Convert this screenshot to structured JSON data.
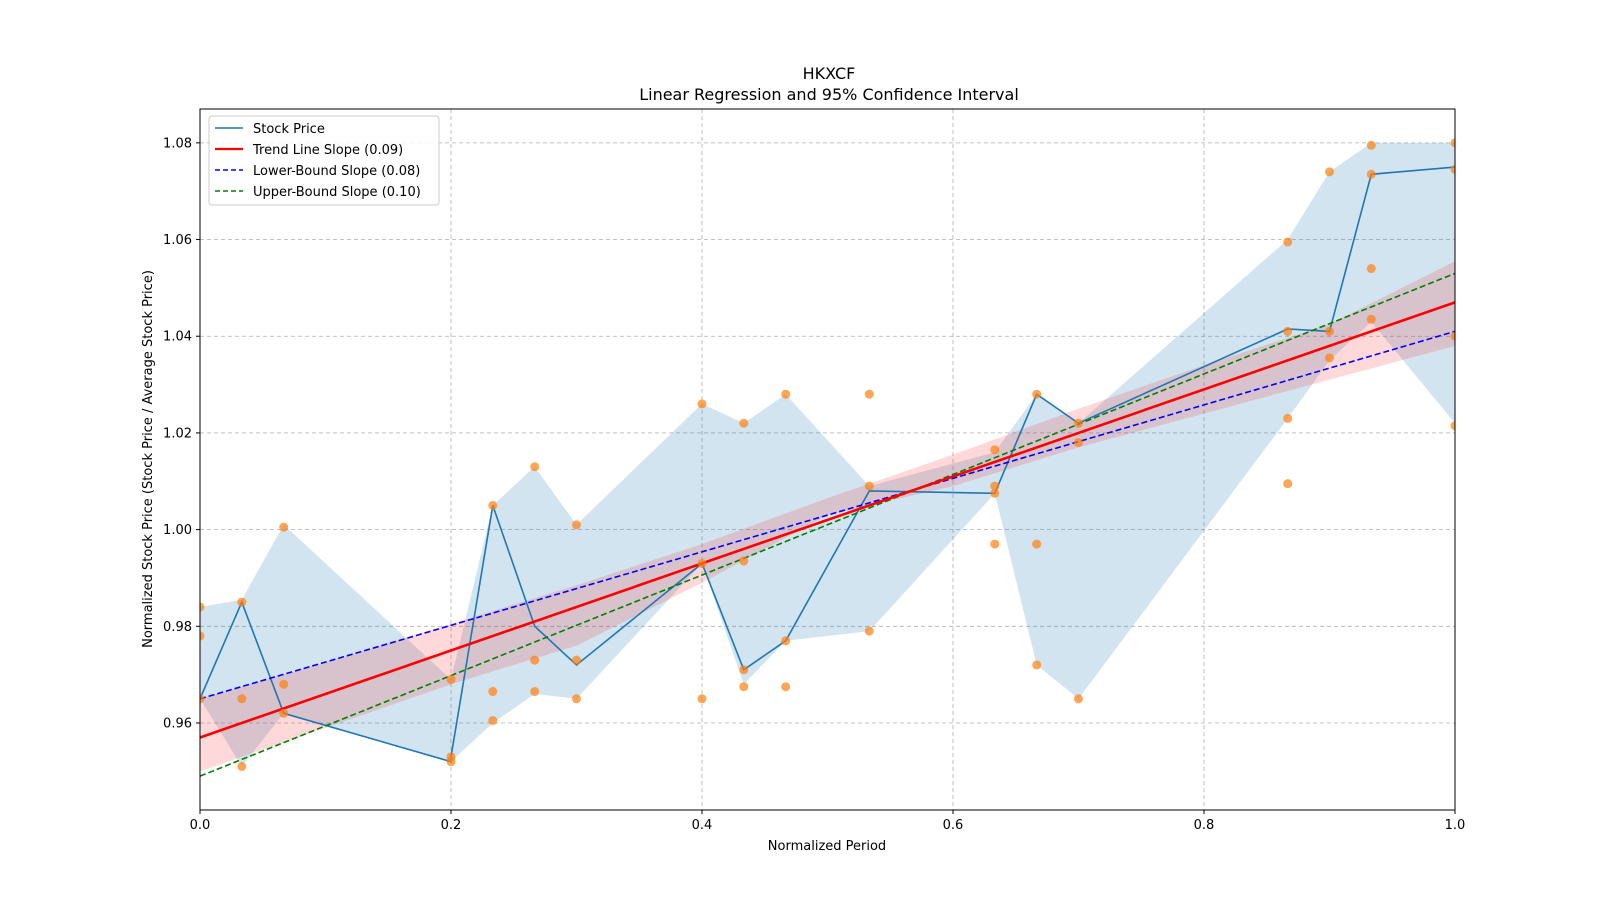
{
  "chart_data": {
    "type": "line",
    "title": "HKXCF",
    "subtitle": "Linear Regression and 95% Confidence Interval",
    "xlabel": "Normalized Period",
    "ylabel": "Normalized Stock Price (Stock Price / Average Stock Price)",
    "xlim": [
      0,
      1
    ],
    "ylim": [
      0.942,
      1.087
    ],
    "xticks": [
      0,
      0.2,
      0.4,
      0.6,
      0.8,
      1.0
    ],
    "xtick_labels": [
      "0.0",
      "0.2",
      "0.4",
      "0.6",
      "0.8",
      "1.0"
    ],
    "yticks": [
      0.96,
      0.98,
      1.0,
      1.02,
      1.04,
      1.06,
      1.08
    ],
    "ytick_labels": [
      "0.96",
      "0.98",
      "1.00",
      "1.02",
      "1.04",
      "1.06",
      "1.08"
    ],
    "grid": true,
    "legend_position": "top-left",
    "colors": {
      "stock": "#1f77b4",
      "band": "#1f77b4",
      "trend": "#ff0000",
      "trend_band": "#ff0000",
      "lower": "#0000ff",
      "upper": "#008000",
      "scatter": "#ff7f0e",
      "grid": "#b0b0b0"
    },
    "legend": [
      {
        "label": "Stock Price",
        "series": "stock"
      },
      {
        "label": "Trend Line Slope (0.09)",
        "series": "trend"
      },
      {
        "label": "Lower-Bound Slope (0.08)",
        "series": "lower"
      },
      {
        "label": "Upper-Bound Slope (0.10)",
        "series": "upper"
      }
    ],
    "stock_price": {
      "x": [
        0.0,
        0.0333,
        0.0667,
        0.2,
        0.2,
        0.2333,
        0.2667,
        0.3,
        0.4,
        0.4333,
        0.4667,
        0.5333,
        0.6333,
        0.6667,
        0.7,
        0.8667,
        0.9,
        0.9333,
        1.0
      ],
      "y": [
        0.965,
        0.985,
        0.962,
        0.952,
        0.953,
        1.005,
        0.98,
        0.972,
        0.993,
        0.971,
        0.977,
        1.008,
        1.0075,
        1.028,
        1.022,
        1.0415,
        1.041,
        1.0735,
        1.075
      ]
    },
    "stock_band": {
      "x": [
        0.0,
        0.0333,
        0.0667,
        0.2,
        0.2333,
        0.2667,
        0.3,
        0.4,
        0.4333,
        0.4667,
        0.5333,
        0.6333,
        0.6667,
        0.7,
        0.8667,
        0.9,
        0.9333,
        1.0
      ],
      "upper": [
        0.984,
        0.9855,
        1.001,
        0.969,
        1.005,
        1.013,
        1.001,
        1.026,
        1.022,
        1.028,
        1.009,
        1.016,
        1.028,
        1.022,
        1.06,
        1.074,
        1.08,
        1.08
      ],
      "lower": [
        0.965,
        0.951,
        0.962,
        0.952,
        0.96,
        0.966,
        0.965,
        0.993,
        0.968,
        0.977,
        0.979,
        1.0075,
        0.972,
        0.965,
        1.023,
        1.035,
        1.043,
        1.022
      ]
    },
    "trend_line": {
      "x": [
        0,
        1
      ],
      "y": [
        0.957,
        1.047
      ]
    },
    "trend_band": {
      "x": [
        0,
        0.1,
        0.2,
        0.3,
        0.4,
        0.5,
        0.6,
        0.7,
        0.8,
        0.9,
        1.0
      ],
      "upper": [
        0.965,
        0.9725,
        0.9805,
        0.9885,
        0.997,
        1.0065,
        1.0155,
        1.025,
        1.034,
        1.0425,
        1.0555
      ],
      "lower": [
        0.95,
        0.959,
        0.968,
        0.976,
        0.989,
        1.003,
        1.009,
        1.017,
        1.024,
        1.031,
        1.038
      ]
    },
    "lower_bound_line": {
      "x": [
        0,
        1
      ],
      "y": [
        0.965,
        1.041
      ]
    },
    "upper_bound_line": {
      "x": [
        0,
        1
      ],
      "y": [
        0.949,
        1.053
      ]
    },
    "scatter": {
      "x": [
        0.0,
        0.0,
        0.0,
        0.0333,
        0.0333,
        0.0333,
        0.0667,
        0.0667,
        0.0667,
        0.2,
        0.2,
        0.2,
        0.2333,
        0.2333,
        0.2333,
        0.2667,
        0.2667,
        0.2667,
        0.3,
        0.3,
        0.3,
        0.4,
        0.4,
        0.4,
        0.4333,
        0.4333,
        0.4333,
        0.4333,
        0.4667,
        0.4667,
        0.4667,
        0.5333,
        0.5333,
        0.5333,
        0.6333,
        0.6333,
        0.6333,
        0.6333,
        0.6667,
        0.6667,
        0.6667,
        0.7,
        0.7,
        0.7,
        0.8667,
        0.8667,
        0.8667,
        0.8667,
        0.9,
        0.9,
        0.9,
        0.9333,
        0.9333,
        0.9333,
        0.9333,
        1.0,
        1.0,
        1.0,
        1.0
      ],
      "y": [
        0.984,
        0.978,
        0.965,
        0.985,
        0.965,
        0.951,
        1.0005,
        0.968,
        0.962,
        0.969,
        0.953,
        0.952,
        1.005,
        0.9665,
        0.9605,
        1.013,
        0.973,
        0.9665,
        1.001,
        0.973,
        0.965,
        1.026,
        0.993,
        0.965,
        1.022,
        0.9935,
        0.971,
        0.9675,
        1.028,
        0.977,
        0.9675,
        1.028,
        1.009,
        0.979,
        1.0165,
        1.009,
        1.0075,
        0.997,
        1.028,
        0.997,
        0.972,
        1.022,
        1.018,
        0.965,
        1.0595,
        1.041,
        1.023,
        1.0095,
        1.074,
        1.041,
        1.0355,
        1.0795,
        1.0735,
        1.054,
        1.0435,
        1.08,
        1.0745,
        1.04,
        1.0215
      ]
    }
  }
}
